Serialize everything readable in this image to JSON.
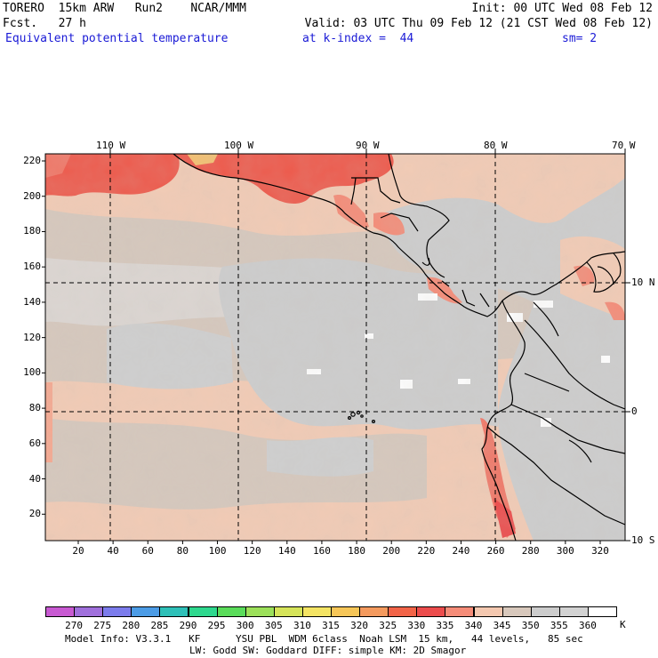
{
  "header": {
    "line1_left": "TORERO  15km ARW   Run2    NCAR/MMM",
    "line1_right": "Init: 00 UTC Wed 08 Feb 12",
    "line2_left": "Fcst.   27 h",
    "line2_right": "Valid: 03 UTC Thu 09 Feb 12 (21 CST Wed 08 Feb 12)",
    "field_name": "Equivalent potential temperature",
    "level_label": "at k-index =  44",
    "smoothing": "sm= 2"
  },
  "map": {
    "top_lon_labels": [
      "110 W",
      "100 W",
      "90 W",
      "80 W",
      "70 W"
    ],
    "right_lat_labels": [
      "10 N",
      "0",
      "10 S"
    ],
    "y_grid_labels": [
      "220",
      "200",
      "180",
      "160",
      "140",
      "120",
      "100",
      "80",
      "60",
      "40",
      "20"
    ],
    "x_grid_labels": [
      "20",
      "40",
      "60",
      "80",
      "100",
      "120",
      "140",
      "160",
      "180",
      "200",
      "220",
      "240",
      "260",
      "280",
      "300",
      "320"
    ],
    "projection": "Mercator",
    "field_units": "K"
  },
  "colorbar": {
    "labels": [
      "270",
      "275",
      "280",
      "285",
      "290",
      "295",
      "300",
      "305",
      "310",
      "315",
      "320",
      "325",
      "330",
      "335",
      "340",
      "345",
      "350",
      "355",
      "360"
    ],
    "units": "K",
    "colors": [
      "#c85ad2",
      "#a070dc",
      "#7c7cec",
      "#4c9ce6",
      "#2ec0b8",
      "#2ed88e",
      "#5adc5a",
      "#9ce05a",
      "#d6e45a",
      "#f4e464",
      "#f6c658",
      "#f49a5e",
      "#f26448",
      "#ec4c4c",
      "#f58c78",
      "#f4c8b0",
      "#d8c8bc",
      "#cccccc",
      "#d2d2d2",
      "#ffffff"
    ]
  },
  "footer": {
    "line1": "Model Info: V3.3.1   KF      YSU PBL  WDM 6class  Noah LSM  15 km,   44 levels,   85 sec",
    "line2": "LW: Godd SW: Goddard DIFF: simple KM: 2D Smagor"
  }
}
